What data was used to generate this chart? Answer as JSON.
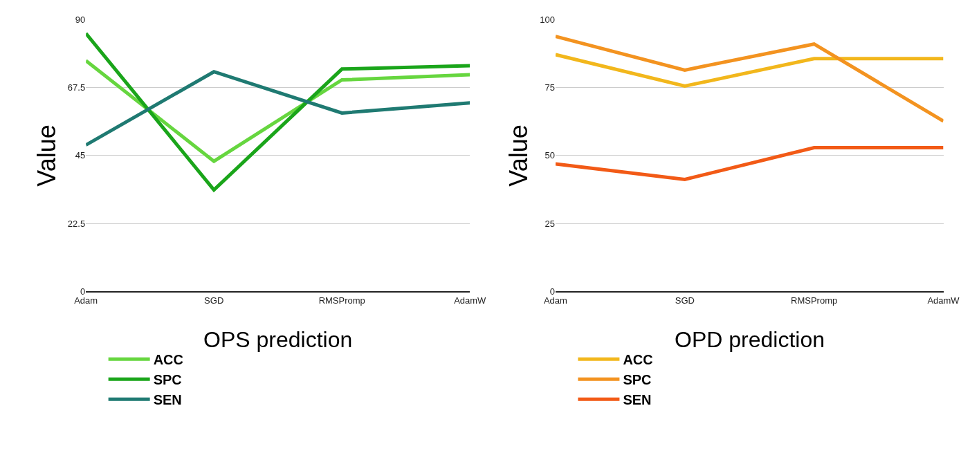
{
  "chart_data": [
    {
      "type": "line",
      "title": "OPS prediction",
      "ylabel": "Value",
      "categories": [
        "Adam",
        "SGD",
        "RMSPromp",
        "AdamW"
      ],
      "ylim": [
        0,
        90
      ],
      "yticks": [
        0,
        22.5,
        45,
        67.5,
        90
      ],
      "grid": "y",
      "legend": "bottom",
      "marker": "none",
      "line_style": "solid",
      "series": [
        {
          "name": "ACC",
          "color": "#66d63f",
          "values": [
            76.5,
            43.1,
            70.1,
            71.8
          ]
        },
        {
          "name": "SPC",
          "color": "#1aa51a",
          "values": [
            85.5,
            33.6,
            73.7,
            74.8
          ]
        },
        {
          "name": "SEN",
          "color": "#1f7a72",
          "values": [
            48.5,
            72.8,
            59.1,
            62.5
          ]
        }
      ]
    },
    {
      "type": "line",
      "title": "OPD prediction",
      "ylabel": "Value",
      "categories": [
        "Adam",
        "SGD",
        "RMSPromp",
        "AdamW"
      ],
      "ylim": [
        0,
        100
      ],
      "yticks": [
        0,
        25,
        50,
        75,
        100
      ],
      "grid": "y",
      "legend": "bottom",
      "marker": "none",
      "line_style": "solid",
      "series": [
        {
          "name": "ACC",
          "color": "#f2b71c",
          "values": [
            87.2,
            75.6,
            85.7,
            85.7
          ]
        },
        {
          "name": "SPC",
          "color": "#f39320",
          "values": [
            93.9,
            81.5,
            91.1,
            62.7
          ]
        },
        {
          "name": "SEN",
          "color": "#f25a16",
          "values": [
            46.9,
            41.2,
            52.9,
            52.9
          ]
        }
      ]
    }
  ]
}
